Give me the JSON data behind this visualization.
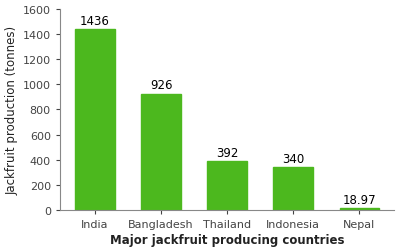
{
  "categories": [
    "India",
    "Bangladesh",
    "Thailand",
    "Indonesia",
    "Nepal"
  ],
  "values": [
    1436,
    926,
    392,
    340,
    18.97
  ],
  "bar_color": "#4cb81e",
  "bar_edge_color": "#4cb81e",
  "xlabel": "Major jackfruit producing countries",
  "ylabel": "Jackfruit production (tonnes)",
  "ylim": [
    0,
    1600
  ],
  "yticks": [
    0,
    200,
    400,
    600,
    800,
    1000,
    1200,
    1400,
    1600
  ],
  "label_fontsize": 8.5,
  "tick_fontsize": 8,
  "value_label_fontsize": 8.5,
  "background_color": "#ffffff",
  "bar_width": 0.6,
  "figsize": [
    4.0,
    2.53
  ],
  "dpi": 100
}
